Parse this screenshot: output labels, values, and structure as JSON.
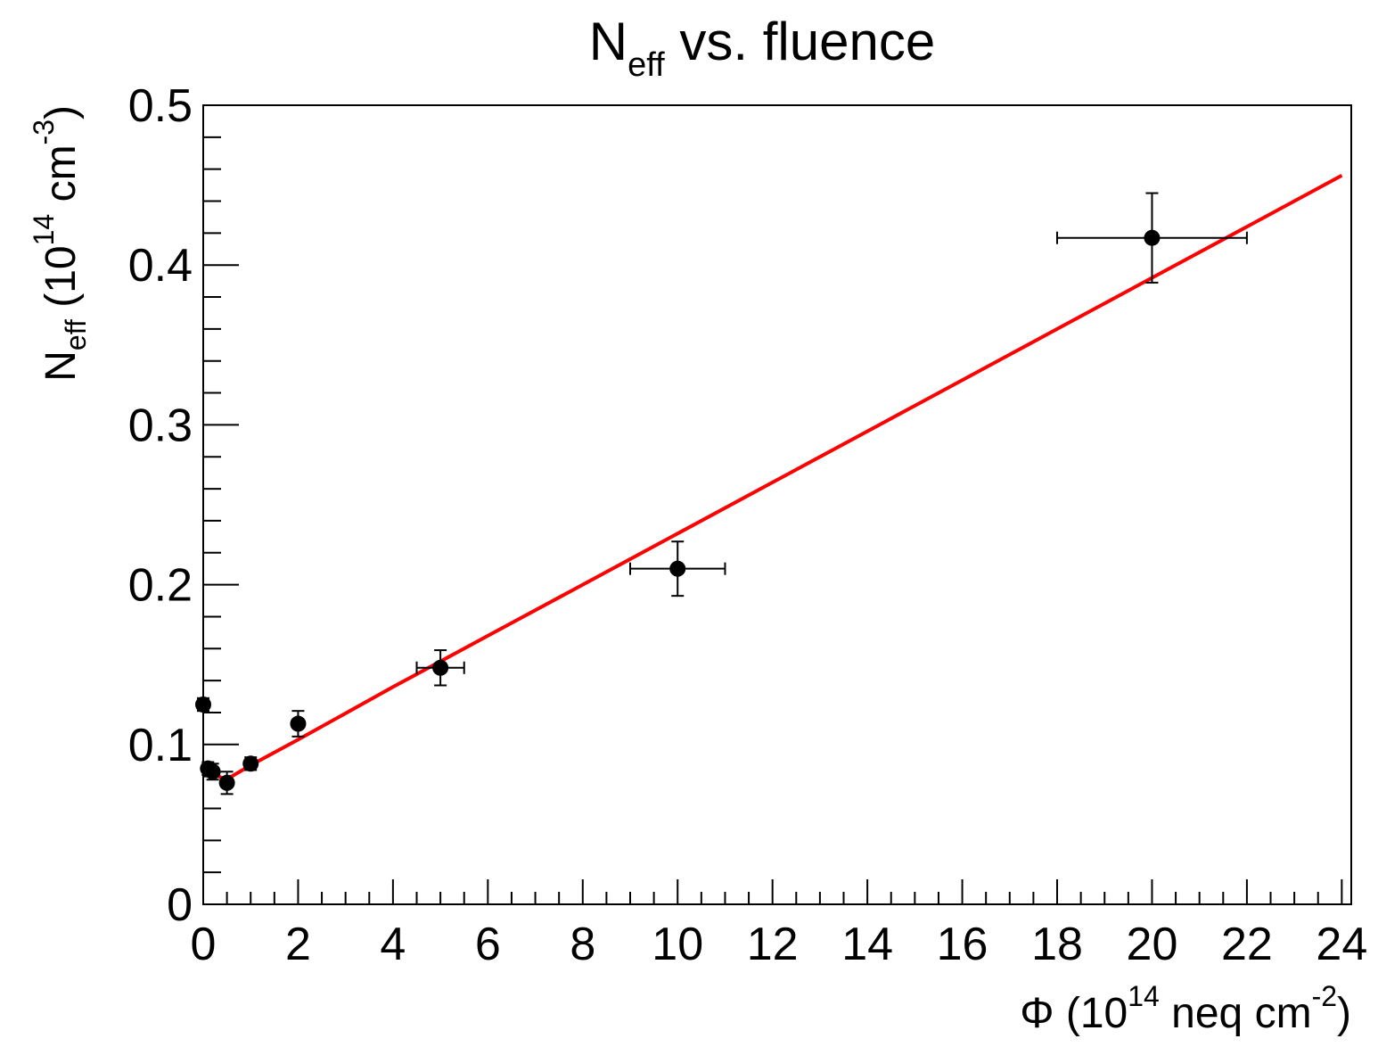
{
  "chart_data": {
    "type": "scatter",
    "title": {
      "main": "N",
      "sub": "eff",
      "rest": " vs. fluence"
    },
    "xlabel": {
      "pre": "Φ (10",
      "sup": "14",
      "mid": " neq cm",
      "sup2": "-2",
      "post": ")"
    },
    "ylabel": {
      "main": "N",
      "sub": "eff",
      "mid": " (10",
      "sup": "14",
      "mid2": " cm",
      "sup2": "-3",
      "post": ")"
    },
    "xlim": [
      0,
      24.2
    ],
    "ylim": [
      0,
      0.5
    ],
    "x_ticks": [
      0,
      2,
      4,
      6,
      8,
      10,
      12,
      14,
      16,
      18,
      20,
      22,
      24
    ],
    "x_tick_labels": [
      "0",
      "2",
      "4",
      "6",
      "8",
      "10",
      "12",
      "14",
      "16",
      "18",
      "20",
      "22",
      "24"
    ],
    "y_ticks": [
      0,
      0.1,
      0.2,
      0.3,
      0.4,
      0.5
    ],
    "y_tick_labels": [
      "0",
      "0.1",
      "0.2",
      "0.3",
      "0.4",
      "0.5"
    ],
    "grid": false,
    "series": [
      {
        "type": "scatter",
        "color": "#000000",
        "points": [
          {
            "x": 0.0,
            "y": 0.125,
            "xerr": 0.0,
            "yerr": 0.004
          },
          {
            "x": 0.1,
            "y": 0.085,
            "xerr": 0.0,
            "yerr": 0.004
          },
          {
            "x": 0.2,
            "y": 0.083,
            "xerr": 0.0,
            "yerr": 0.005
          },
          {
            "x": 0.5,
            "y": 0.076,
            "xerr": 0.0,
            "yerr": 0.007
          },
          {
            "x": 1.0,
            "y": 0.088,
            "xerr": 0.0,
            "yerr": 0.004
          },
          {
            "x": 2.0,
            "y": 0.113,
            "xerr": 0.0,
            "yerr": 0.008
          },
          {
            "x": 5.0,
            "y": 0.148,
            "xerr": 0.5,
            "yerr": 0.011
          },
          {
            "x": 10.0,
            "y": 0.21,
            "xerr": 1.0,
            "yerr": 0.017
          },
          {
            "x": 20.0,
            "y": 0.417,
            "xerr": 2.0,
            "yerr": 0.028
          }
        ]
      },
      {
        "type": "line",
        "color": "#ff0000",
        "x": [
          0.2,
          0.4,
          0.6,
          1.0,
          2.0,
          4.0,
          6.0,
          8.0,
          10.0,
          12.0,
          14.0,
          16.0,
          18.0,
          20.0,
          22.0,
          24.0
        ],
        "y": [
          0.082,
          0.079,
          0.08,
          0.087,
          0.103,
          0.136,
          0.168,
          0.2,
          0.232,
          0.264,
          0.296,
          0.328,
          0.36,
          0.392,
          0.424,
          0.456
        ]
      }
    ]
  }
}
